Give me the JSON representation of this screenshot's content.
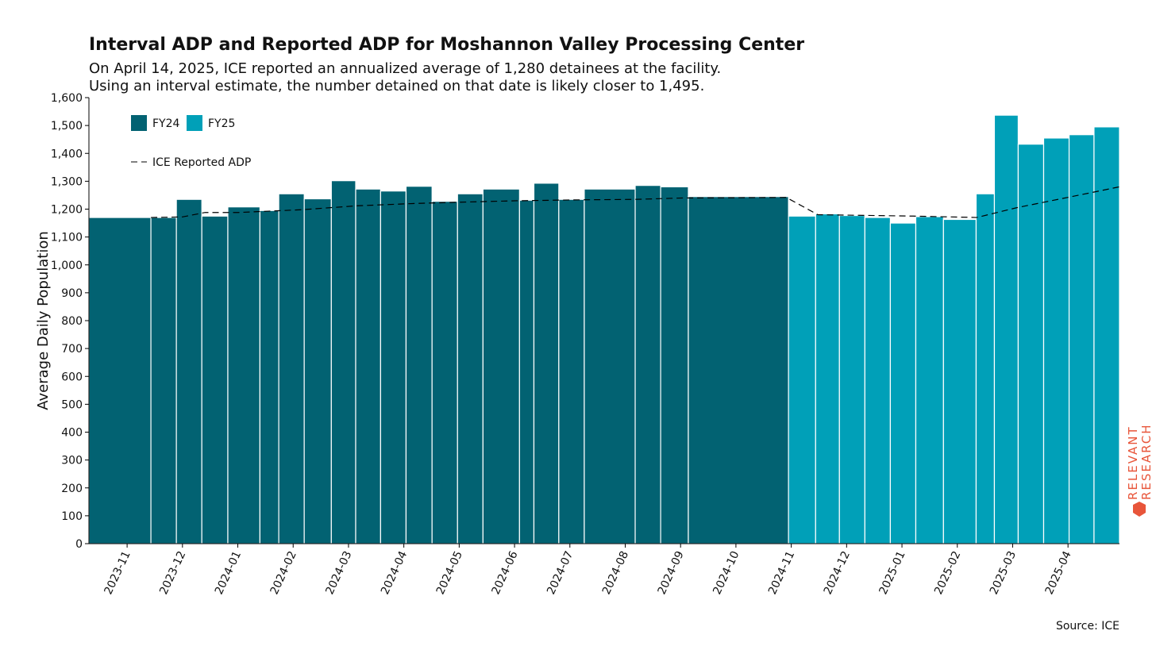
{
  "chart_data": {
    "type": "histogram",
    "title": "Interval ADP and Reported ADP for Moshannon Valley Processing Center",
    "subtitle": [
      "On April 14, 2025, ICE reported an annualized average of 1,280 detainees at the facility.",
      "Using an interval estimate, the number detained on that date is likely closer to 1,495."
    ],
    "ylabel": "Average Daily Population",
    "source": "Source: ICE",
    "watermark": [
      "RELEVANT",
      "RESEARCH"
    ],
    "xlim": [
      -0.69,
      17.93
    ],
    "xticks": [
      {
        "value": 0,
        "label": "2023-11"
      },
      {
        "value": 1,
        "label": "2023-12"
      },
      {
        "value": 2,
        "label": "2024-01"
      },
      {
        "value": 3,
        "label": "2024-02"
      },
      {
        "value": 4,
        "label": "2024-03"
      },
      {
        "value": 5,
        "label": "2024-04"
      },
      {
        "value": 6,
        "label": "2024-05"
      },
      {
        "value": 7,
        "label": "2024-06"
      },
      {
        "value": 8,
        "label": "2024-07"
      },
      {
        "value": 9,
        "label": "2024-08"
      },
      {
        "value": 10,
        "label": "2024-09"
      },
      {
        "value": 11,
        "label": "2024-10"
      },
      {
        "value": 12,
        "label": "2024-11"
      },
      {
        "value": 13,
        "label": "2024-12"
      },
      {
        "value": 14,
        "label": "2025-01"
      },
      {
        "value": 15,
        "label": "2025-02"
      },
      {
        "value": 16,
        "label": "2025-03"
      },
      {
        "value": 17,
        "label": "2025-04"
      }
    ],
    "ylim": [
      0,
      1600
    ],
    "yticks": [
      0,
      100,
      200,
      300,
      400,
      500,
      600,
      700,
      800,
      900,
      {
        "value": 1000,
        "label": "1,000"
      },
      {
        "value": 1100,
        "label": "1,100"
      },
      {
        "value": 1200,
        "label": "1,200"
      },
      {
        "value": 1300,
        "label": "1,300"
      },
      {
        "value": 1400,
        "label": "1,400"
      },
      {
        "value": 1500,
        "label": "1,500"
      },
      {
        "value": 1600,
        "label": "1,600"
      }
    ],
    "series": [
      {
        "name": "FY24",
        "color": "#026272",
        "bins": [
          -0.69,
          0.43,
          0.89,
          1.35,
          1.82,
          2.4,
          2.74,
          3.2,
          3.69,
          4.13,
          4.58,
          5.04,
          5.51,
          5.97,
          6.43,
          7.09,
          7.35,
          7.8,
          8.26,
          9.18,
          9.64,
          10.14,
          11.95
        ],
        "values": [
          1170,
          1170,
          1235,
          1175,
          1208,
          1195,
          1255,
          1237,
          1302,
          1272,
          1265,
          1282,
          1228,
          1255,
          1272,
          1232,
          1293,
          1235,
          1272,
          1285,
          1280,
          1245
        ]
      },
      {
        "name": "FY25",
        "color": "#00a0b8",
        "bins": [
          11.95,
          12.44,
          12.87,
          13.33,
          13.79,
          14.25,
          14.75,
          15.34,
          15.67,
          16.1,
          16.56,
          17.02,
          17.47,
          17.93
        ],
        "values": [
          1175,
          1183,
          1177,
          1170,
          1150,
          1173,
          1163,
          1255,
          1537,
          1433,
          1455,
          1467,
          1495
        ]
      }
    ],
    "line": {
      "name": "ICE Reported ADP",
      "color": "#000000",
      "x": [
        0.43,
        1.0,
        1.41,
        2.01,
        3.16,
        4.16,
        5.16,
        6.03,
        7.03,
        8.03,
        9.18,
        10.04,
        11.91,
        12.48,
        14.2,
        15.35,
        16.07,
        17.07,
        17.93
      ],
      "y": [
        1170,
        1172,
        1188,
        1188,
        1198,
        1212,
        1220,
        1225,
        1230,
        1233,
        1235,
        1240,
        1242,
        1180,
        1175,
        1170,
        1205,
        1245,
        1280
      ]
    }
  }
}
